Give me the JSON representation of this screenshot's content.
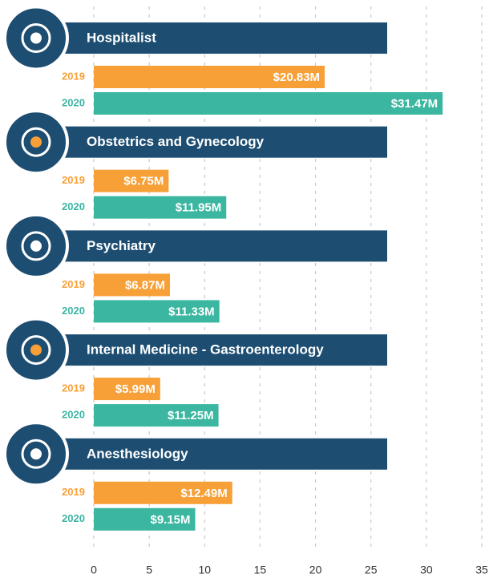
{
  "chart_data": {
    "type": "grouped-hbar",
    "categories": [
      "Hospitalist",
      "Obstetrics and Gynecology",
      "Psychiatry",
      "Internal Medicine - Gastroenterology",
      "Anesthesiology"
    ],
    "series": [
      {
        "name": "2019",
        "color": "#f7a037",
        "values": [
          20.83,
          6.75,
          6.87,
          5.99,
          12.49
        ],
        "value_labels": [
          "$20.83M",
          "$6.75M",
          "$6.87M",
          "$5.99M",
          "$12.49M"
        ]
      },
      {
        "name": "2020",
        "color": "#3bb6a0",
        "values": [
          31.47,
          11.95,
          11.33,
          11.25,
          9.15
        ],
        "value_labels": [
          "$31.47M",
          "$11.95M",
          "$11.33M",
          "$11.25M",
          "$9.15M"
        ]
      }
    ],
    "banner_color": "#1d4e72",
    "xlim": [
      0,
      35
    ],
    "xticks": [
      0,
      5,
      10,
      15,
      20,
      25,
      30,
      35
    ],
    "grid": true
  }
}
